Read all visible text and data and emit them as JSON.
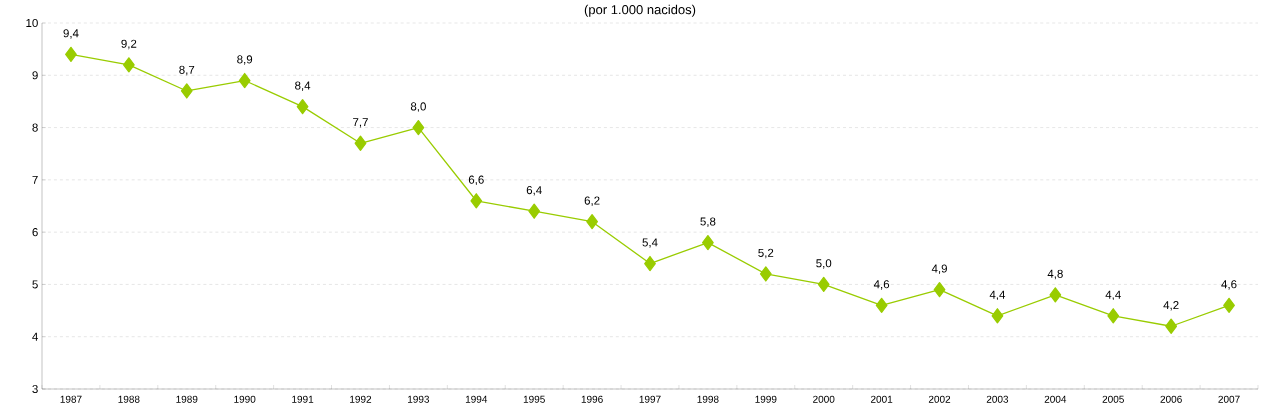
{
  "chart_data": {
    "type": "line",
    "subtitle": "(por 1.000 nacidos)",
    "categories": [
      "1987",
      "1988",
      "1989",
      "1990",
      "1991",
      "1992",
      "1993",
      "1994",
      "1995",
      "1996",
      "1997",
      "1998",
      "1999",
      "2000",
      "2001",
      "2002",
      "2003",
      "2004",
      "2005",
      "2006",
      "2007"
    ],
    "series": [
      {
        "color": "#99cc00",
        "values": [
          9.4,
          9.2,
          8.7,
          8.9,
          8.4,
          7.7,
          8.0,
          6.6,
          6.4,
          6.2,
          5.4,
          5.8,
          5.2,
          5.0,
          4.6,
          4.9,
          4.4,
          4.8,
          4.4,
          4.2,
          4.6
        ],
        "value_labels": [
          "9,4",
          "9,2",
          "8,7",
          "8,9",
          "8,4",
          "7,7",
          "8,0",
          "6,6",
          "6,4",
          "6,2",
          "5,4",
          "5,8",
          "5,2",
          "5,0",
          "4,6",
          "4,9",
          "4,4",
          "4,8",
          "4,4",
          "4,2",
          "4,6"
        ]
      }
    ],
    "ylim": [
      3,
      10
    ],
    "yticks": [
      3,
      4,
      5,
      6,
      7,
      8,
      9,
      10
    ],
    "grid": "y",
    "marker": "diamond",
    "line_style": "solid"
  }
}
